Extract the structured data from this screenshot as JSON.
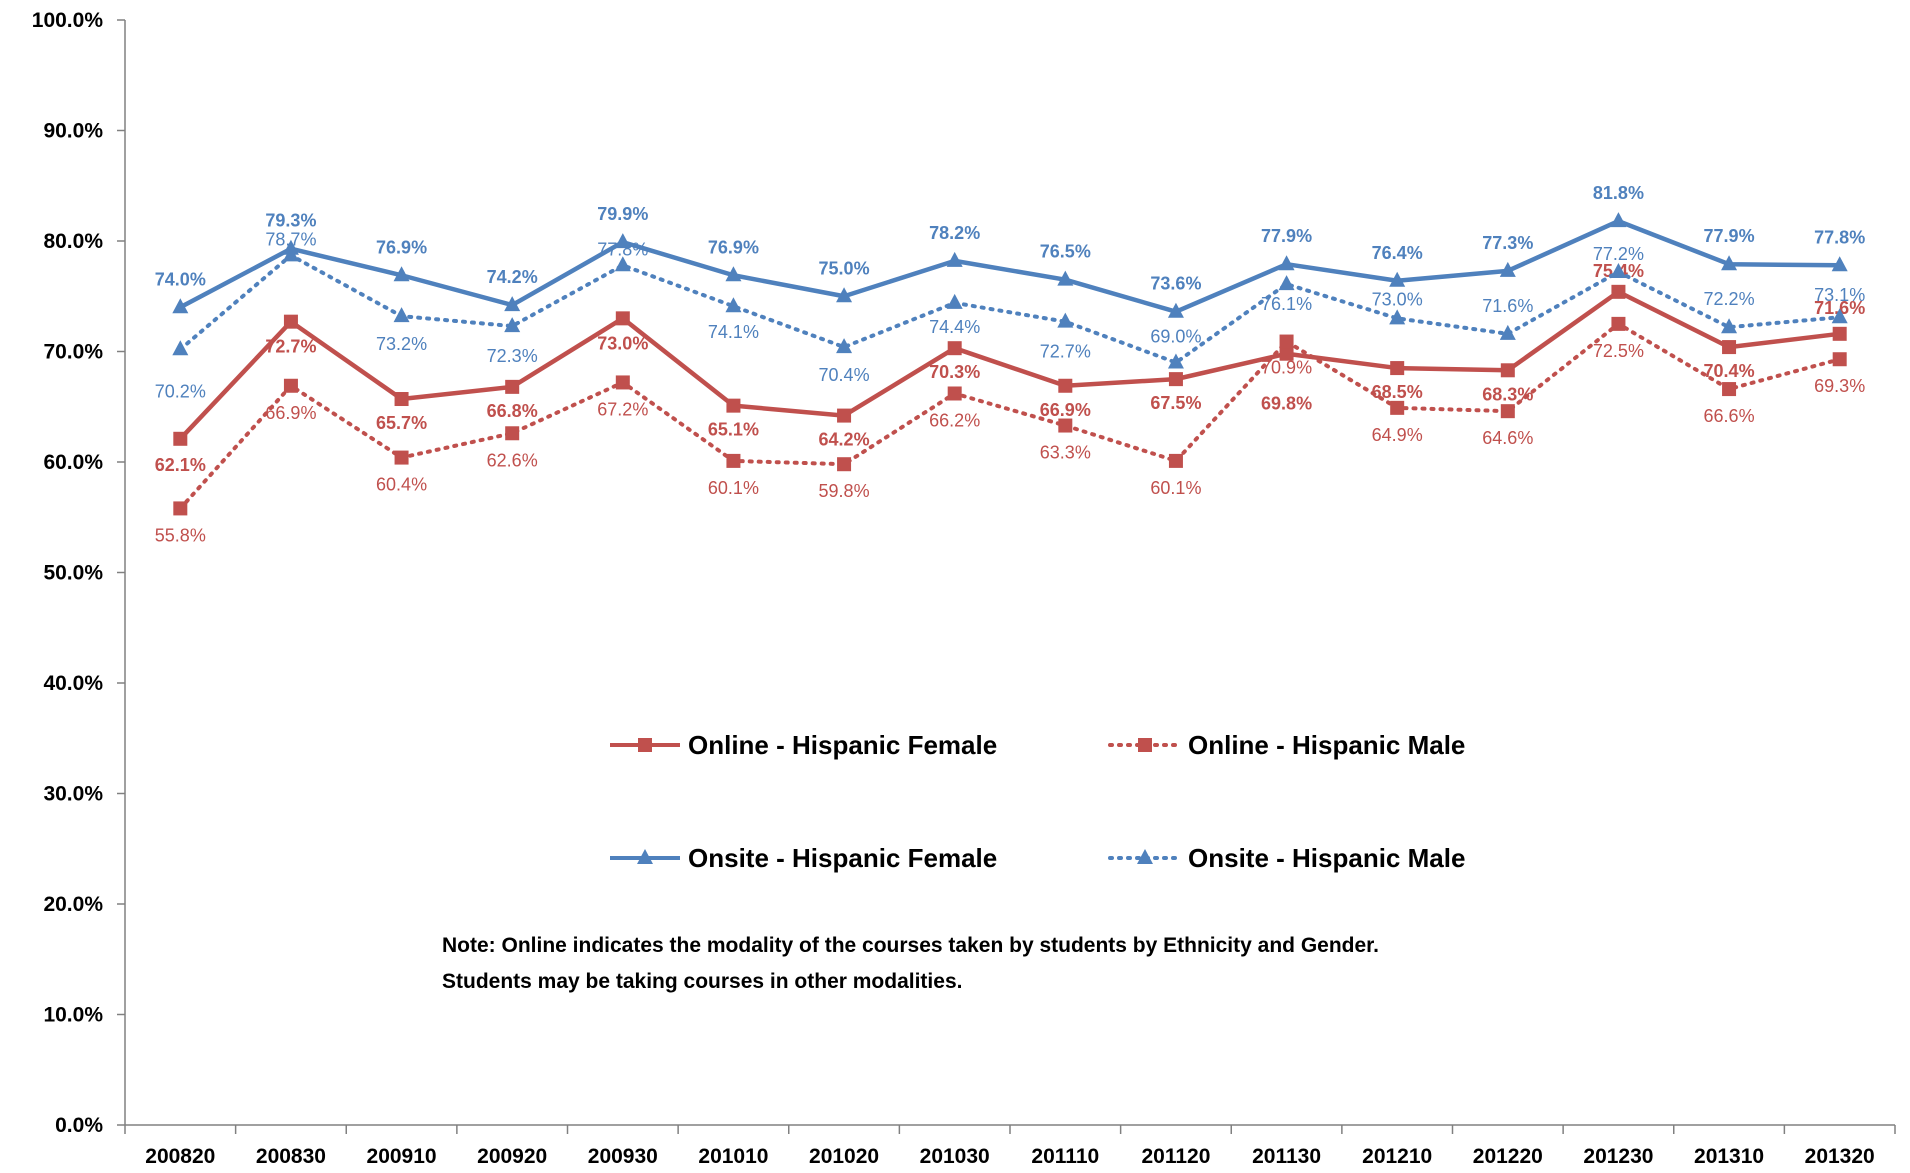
{
  "chart_data": {
    "type": "line",
    "categories": [
      "200820",
      "200830",
      "200910",
      "200920",
      "200930",
      "201010",
      "201020",
      "201030",
      "201110",
      "201120",
      "201130",
      "201210",
      "201220",
      "201230",
      "201310",
      "201320"
    ],
    "ylim": [
      0,
      100
    ],
    "yticks": [
      "0.0%",
      "10.0%",
      "20.0%",
      "30.0%",
      "40.0%",
      "50.0%",
      "60.0%",
      "70.0%",
      "80.0%",
      "90.0%",
      "100.0%"
    ],
    "grid": false,
    "legend_position": "center",
    "series": [
      {
        "name": "Online - Hispanic Female",
        "color": "#C0504D",
        "style": "solid",
        "marker": "square",
        "values": [
          62.1,
          72.7,
          65.7,
          66.8,
          73.0,
          65.1,
          64.2,
          70.3,
          66.9,
          67.5,
          69.8,
          68.5,
          68.3,
          75.4,
          70.4,
          71.6
        ],
        "labels": [
          "62.1%",
          "72.7%",
          "65.7%",
          "66.8%",
          "73.0%",
          "65.1%",
          "64.2%",
          "70.3%",
          "66.9%",
          "67.5%",
          "69.8%",
          "68.5%",
          "68.3%",
          "75.4%",
          "70.4%",
          "71.6%"
        ]
      },
      {
        "name": "Online - Hispanic Male",
        "color": "#C0504D",
        "style": "dotted",
        "marker": "square",
        "values": [
          55.8,
          66.9,
          60.4,
          62.6,
          67.2,
          60.1,
          59.8,
          66.2,
          63.3,
          60.1,
          70.9,
          64.9,
          64.6,
          72.5,
          66.6,
          69.3
        ],
        "labels": [
          "55.8%",
          "66.9%",
          "60.4%",
          "62.6%",
          "67.2%",
          "60.1%",
          "59.8%",
          "66.2%",
          "63.3%",
          "60.1%",
          "70.9%",
          "64.9%",
          "64.6%",
          "72.5%",
          "66.6%",
          "69.3%"
        ]
      },
      {
        "name": "Onsite - Hispanic Female",
        "color": "#4F81BD",
        "style": "solid",
        "marker": "triangle",
        "values": [
          74.0,
          79.3,
          76.9,
          74.2,
          79.9,
          76.9,
          75.0,
          78.2,
          76.5,
          73.6,
          77.9,
          76.4,
          77.3,
          81.8,
          77.9,
          77.8
        ],
        "labels": [
          "74.0%",
          "79.3%",
          "76.9%",
          "74.2%",
          "79.9%",
          "76.9%",
          "75.0%",
          "78.2%",
          "76.5%",
          "73.6%",
          "77.9%",
          "76.4%",
          "77.3%",
          "81.8%",
          "77.9%",
          "77.8%"
        ]
      },
      {
        "name": "Onsite - Hispanic Male",
        "color": "#4F81BD",
        "style": "dotted",
        "marker": "triangle",
        "values": [
          70.2,
          78.7,
          73.2,
          72.3,
          77.8,
          74.1,
          70.4,
          74.4,
          72.7,
          69.0,
          76.1,
          73.0,
          71.6,
          77.2,
          72.2,
          73.1
        ],
        "labels": [
          "70.2%",
          "78.7%",
          "73.2%",
          "72.3%",
          "77.8%",
          "74.1%",
          "70.4%",
          "74.4%",
          "72.7%",
          "69.0%",
          "76.1%",
          "73.0%",
          "71.6%",
          "77.2%",
          "72.2%",
          "73.1%"
        ]
      }
    ],
    "annotations": [
      "Note: Online indicates the modality of the courses taken by students by Ethnicity and Gender.",
      "Students may be taking courses in other modalities."
    ]
  }
}
